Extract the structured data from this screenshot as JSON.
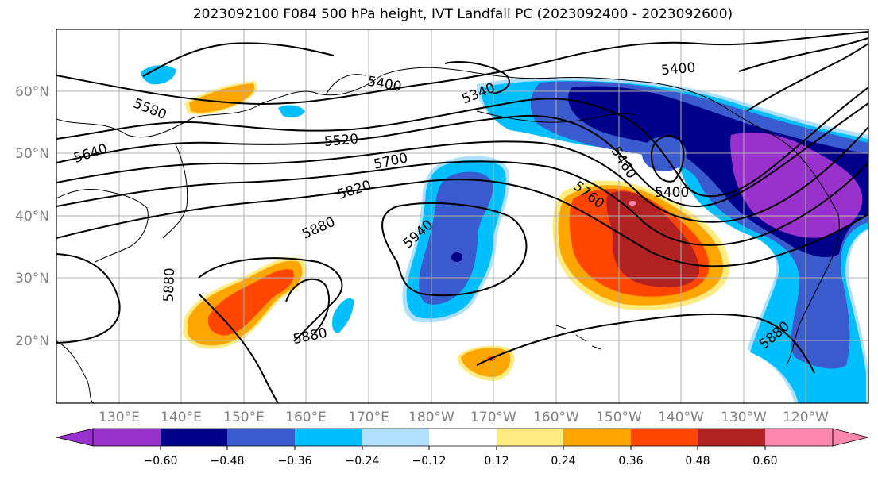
{
  "title": "2023092100 F084 500 hPa height, IVT Landfall PC (2023092400 - 2023092600)",
  "map": {
    "lat_labels": [
      "60°N",
      "50°N",
      "40°N",
      "30°N",
      "20°N"
    ],
    "lon_labels": [
      "130°E",
      "140°E",
      "150°E",
      "160°E",
      "170°E",
      "180°W",
      "170°W",
      "160°W",
      "150°W",
      "140°W",
      "130°W",
      "120°W"
    ],
    "contour_labels": [
      "5400",
      "5340",
      "5580",
      "5520",
      "5640",
      "5700",
      "5820",
      "5880",
      "5940",
      "5460",
      "5760",
      "5400",
      "5880",
      "5880",
      "5880"
    ],
    "colors": {
      "lon_lat_label": "#808080",
      "ocean": "#ffffff",
      "gridline": "#b0b0b0"
    }
  },
  "colorbar": {
    "tick_labels": [
      "−0.60",
      "−0.48",
      "−0.36",
      "−0.24",
      "−0.12",
      "0.12",
      "0.24",
      "0.36",
      "0.48",
      "0.60"
    ],
    "colors": [
      "#9932cc",
      "#00008b",
      "#3a5bcd",
      "#00bfff",
      "#b0e0ff",
      "#ffffff",
      "#ffeb80",
      "#ffa500",
      "#ff4500",
      "#b22222",
      "#ff88b0"
    ]
  }
}
